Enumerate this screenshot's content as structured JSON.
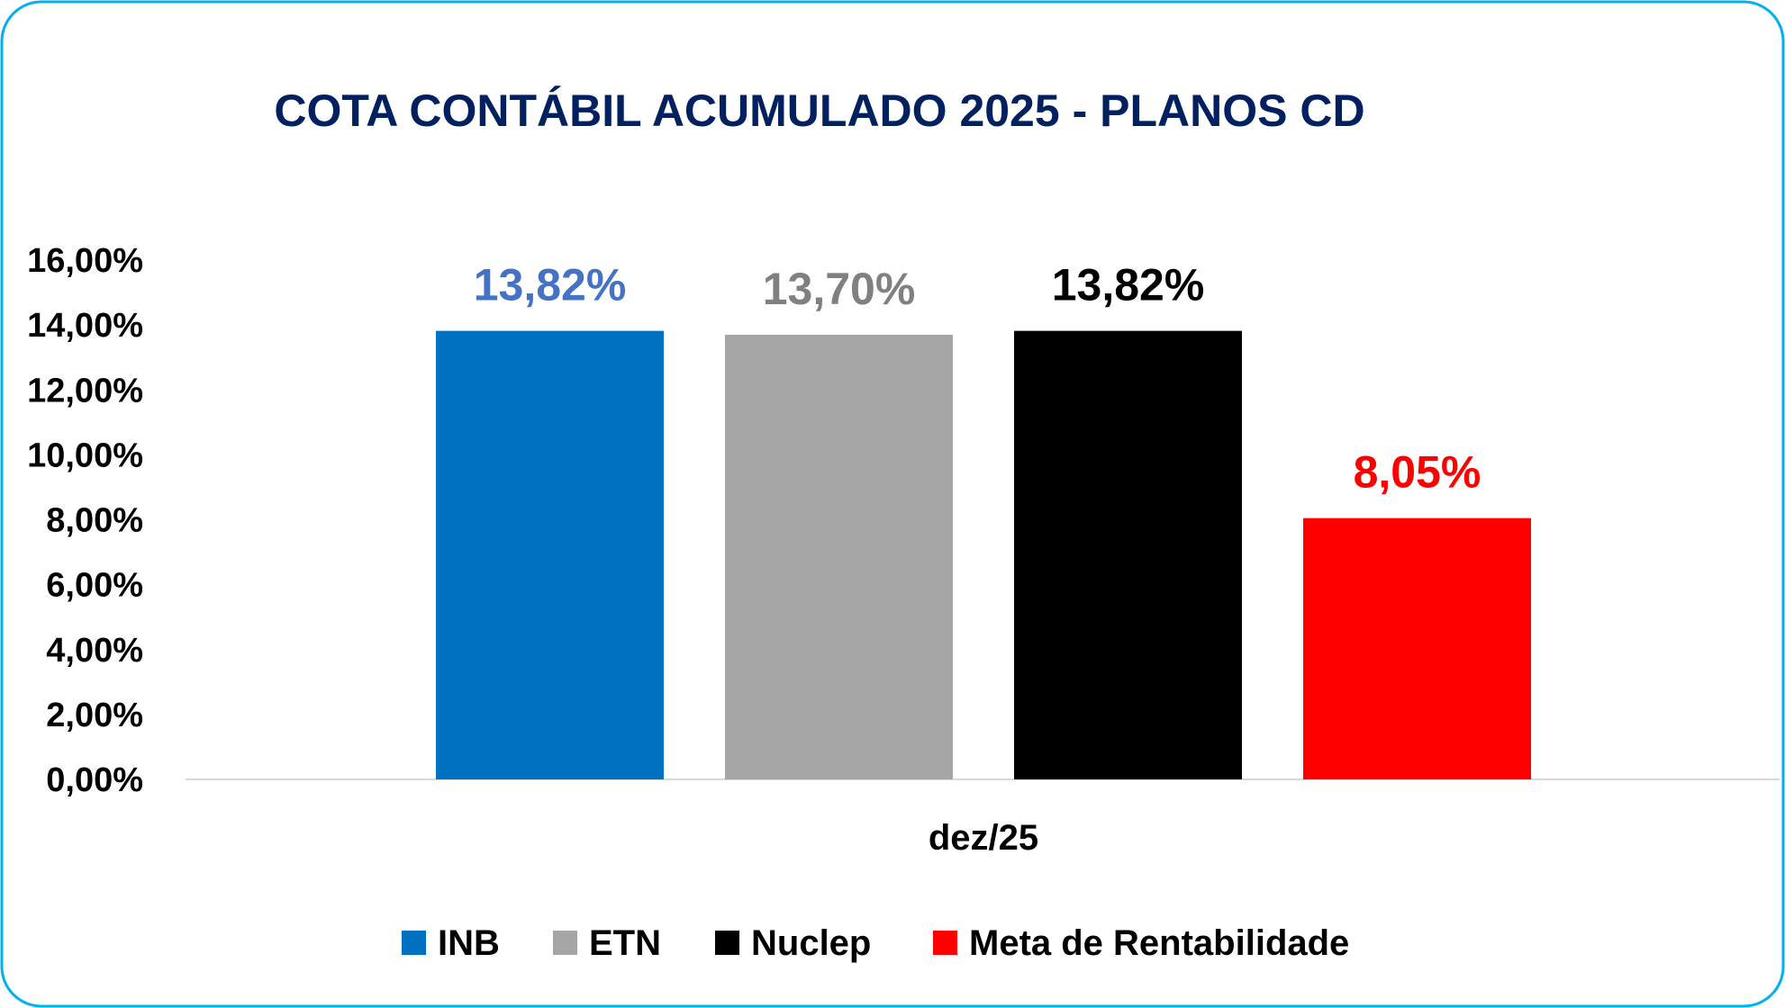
{
  "chart_data": {
    "type": "bar",
    "title": "COTA CONTÁBIL ACUMULADO 2025 - PLANOS CD",
    "categories": [
      "dez/25"
    ],
    "series": [
      {
        "name": "INB",
        "values": [
          13.82
        ],
        "label": "13,82%",
        "color": "#0070C0",
        "label_color": "#4472C4"
      },
      {
        "name": "ETN",
        "values": [
          13.7
        ],
        "label": "13,70%",
        "color": "#A5A5A5",
        "label_color": "#808080"
      },
      {
        "name": "Nuclep",
        "values": [
          13.82
        ],
        "label": "13,82%",
        "color": "#000000",
        "label_color": "#000000"
      },
      {
        "name": "Meta de Rentabilidade",
        "values": [
          8.05
        ],
        "label": "8,05%",
        "color": "#FF0000",
        "label_color": "#FF0000"
      }
    ],
    "yticks": [
      "0,00%",
      "2,00%",
      "4,00%",
      "6,00%",
      "8,00%",
      "10,00%",
      "12,00%",
      "14,00%",
      "16,00%"
    ],
    "ylim": [
      0,
      16
    ],
    "xlabel": "",
    "ylabel": "",
    "grid": false,
    "legend": "bottom",
    "colors": {
      "title": "#002060",
      "border": "#00B0F0",
      "axis": "#D9D9D9"
    }
  }
}
